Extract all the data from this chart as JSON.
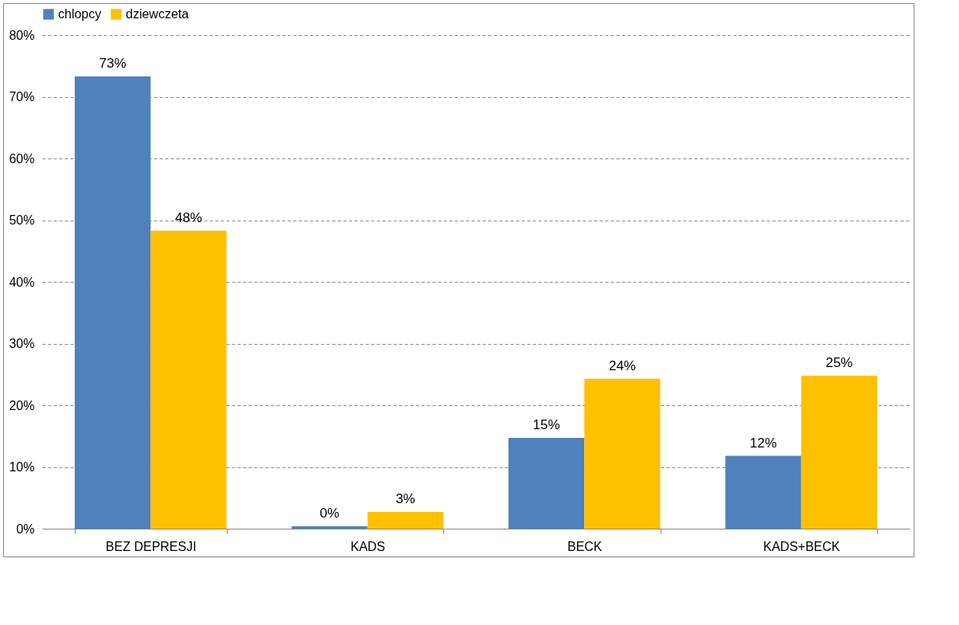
{
  "chart_data": {
    "type": "bar",
    "categories": [
      "BEZ DEPRESJI",
      "KADS",
      "BECK",
      "KADS+BECK"
    ],
    "series": [
      {
        "name": "chlopcy",
        "color": "#4f81bd",
        "values": [
          73.3,
          0.4,
          14.7,
          11.8
        ],
        "value_labels": [
          "73%",
          "0%",
          "15%",
          "12%"
        ]
      },
      {
        "name": "dziewczeta",
        "color": "#ffc000",
        "values": [
          48.3,
          2.7,
          24.3,
          24.8
        ],
        "value_labels": [
          "48%",
          "3%",
          "24%",
          "25%"
        ]
      }
    ],
    "ylim": [
      0,
      80
    ],
    "yticks": [
      {
        "value": 0,
        "label": "0%"
      },
      {
        "value": 10,
        "label": "10%"
      },
      {
        "value": 20,
        "label": "20%"
      },
      {
        "value": 30,
        "label": "30%"
      },
      {
        "value": 40,
        "label": "40%"
      },
      {
        "value": 50,
        "label": "50%"
      },
      {
        "value": 60,
        "label": "60%"
      },
      {
        "value": 70,
        "label": "70%"
      },
      {
        "value": 80,
        "label": "80%"
      }
    ],
    "grid": "y",
    "legend": "top"
  }
}
